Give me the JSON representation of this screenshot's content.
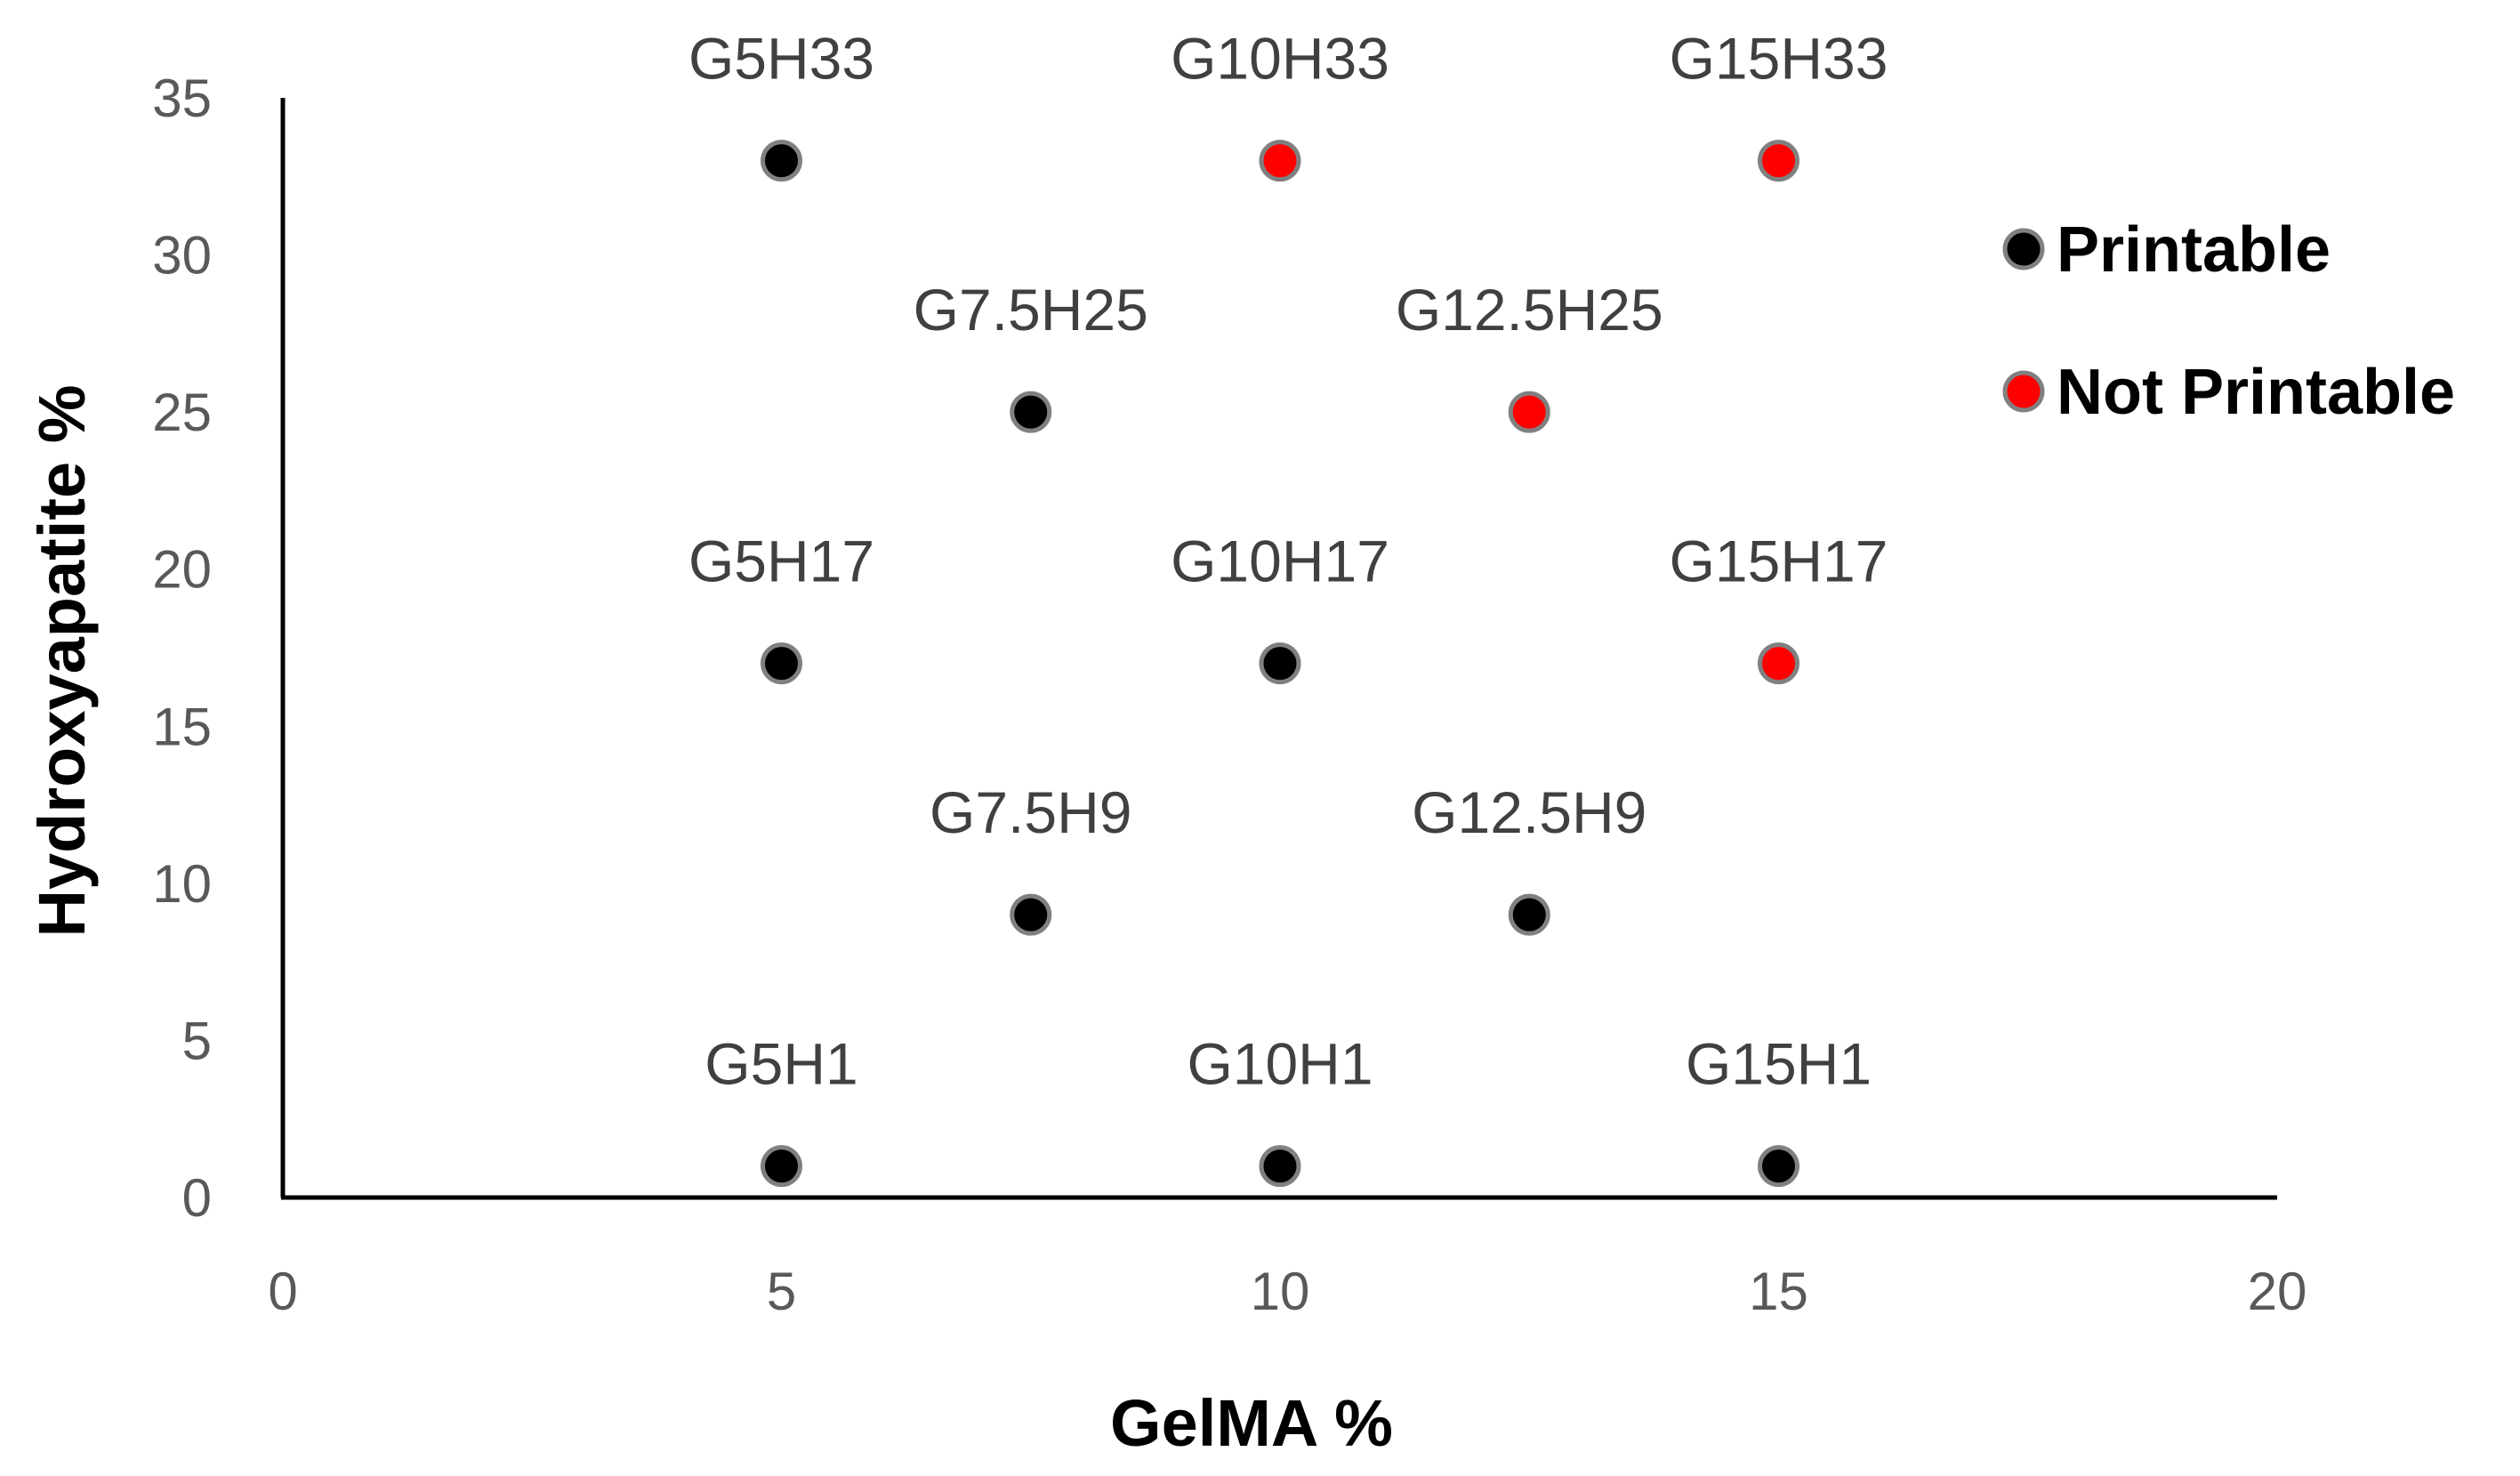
{
  "chart_data": {
    "type": "scatter",
    "title": "",
    "xlabel": "GelMA %",
    "ylabel": "Hydroxyapatite %",
    "xlim": [
      0,
      20
    ],
    "ylim": [
      0,
      35
    ],
    "xticks": [
      0,
      5,
      10,
      15,
      20
    ],
    "yticks": [
      0,
      5,
      10,
      15,
      20,
      25,
      30,
      35
    ],
    "grid": false,
    "legend_position": "right",
    "series": [
      {
        "name": "Printable",
        "color": "#000000",
        "edge_color": "#808080"
      },
      {
        "name": "Not Printable",
        "color": "#ff0000",
        "edge_color": "#808080"
      }
    ],
    "points": [
      {
        "label": "G5H33",
        "x": 5,
        "y": 33,
        "series": "Printable"
      },
      {
        "label": "G10H33",
        "x": 10,
        "y": 33,
        "series": "Not Printable"
      },
      {
        "label": "G15H33",
        "x": 15,
        "y": 33,
        "series": "Not Printable"
      },
      {
        "label": "G7.5H25",
        "x": 7.5,
        "y": 25,
        "series": "Printable"
      },
      {
        "label": "G12.5H25",
        "x": 12.5,
        "y": 25,
        "series": "Not Printable"
      },
      {
        "label": "G5H17",
        "x": 5,
        "y": 17,
        "series": "Printable"
      },
      {
        "label": "G10H17",
        "x": 10,
        "y": 17,
        "series": "Printable"
      },
      {
        "label": "G15H17",
        "x": 15,
        "y": 17,
        "series": "Not Printable"
      },
      {
        "label": "G7.5H9",
        "x": 7.5,
        "y": 9,
        "series": "Printable"
      },
      {
        "label": "G12.5H9",
        "x": 12.5,
        "y": 9,
        "series": "Printable"
      },
      {
        "label": "G5H1",
        "x": 5,
        "y": 1,
        "series": "Printable"
      },
      {
        "label": "G10H1",
        "x": 10,
        "y": 1,
        "series": "Printable"
      },
      {
        "label": "G15H1",
        "x": 15,
        "y": 1,
        "series": "Printable"
      }
    ]
  }
}
